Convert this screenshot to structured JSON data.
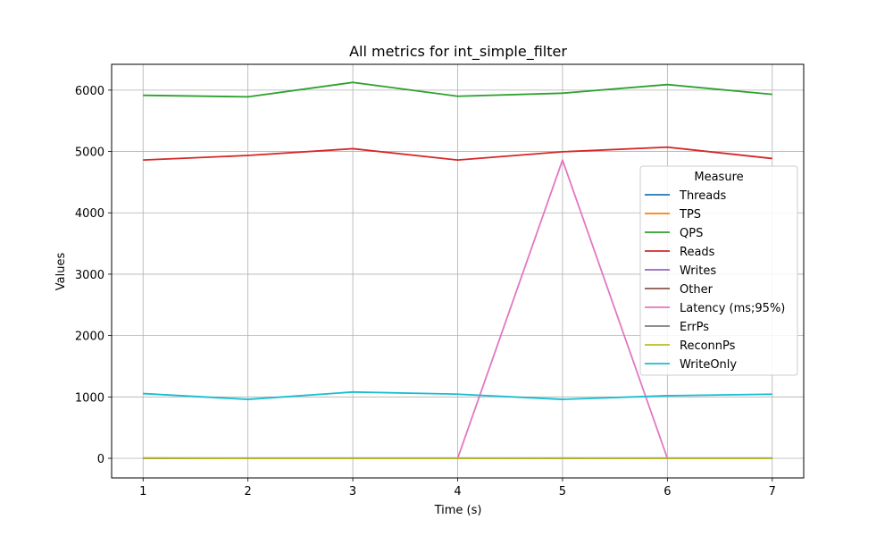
{
  "chart_data": {
    "type": "line",
    "title": "All metrics for int_simple_filter",
    "xlabel": "Time (s)",
    "ylabel": "Values",
    "x": [
      1,
      2,
      3,
      4,
      5,
      6,
      7
    ],
    "xlim": [
      0.7,
      7.3
    ],
    "ylim": [
      -320,
      6420
    ],
    "xticks": [
      1,
      2,
      3,
      4,
      5,
      6,
      7
    ],
    "yticks": [
      0,
      1000,
      2000,
      3000,
      4000,
      5000,
      6000
    ],
    "grid": true,
    "legend": {
      "title": "Measure",
      "placement": "right"
    },
    "series": [
      {
        "name": "Threads",
        "color": "#1f77b4",
        "values": [
          4,
          4,
          4,
          4,
          4,
          4,
          4
        ]
      },
      {
        "name": "TPS",
        "color": "#ff7f0e",
        "values": [
          0,
          0,
          0,
          0,
          0,
          0,
          0
        ]
      },
      {
        "name": "QPS",
        "color": "#2ca02c",
        "values": [
          5915,
          5890,
          6125,
          5900,
          5950,
          6090,
          5930
        ]
      },
      {
        "name": "Reads",
        "color": "#d62728",
        "values": [
          4860,
          4935,
          5045,
          4860,
          4995,
          5070,
          4885
        ]
      },
      {
        "name": "Writes",
        "color": "#9467bd",
        "values": [
          0,
          0,
          0,
          0,
          0,
          0,
          0
        ]
      },
      {
        "name": "Other",
        "color": "#8c564b",
        "values": [
          0,
          0,
          0,
          0,
          0,
          0,
          0
        ]
      },
      {
        "name": "Latency (ms;95%)",
        "color": "#e377c2",
        "values": [
          null,
          null,
          null,
          0,
          4860,
          0,
          null
        ]
      },
      {
        "name": "ErrPs",
        "color": "#7f7f7f",
        "values": [
          0,
          0,
          0,
          0,
          0,
          0,
          0
        ]
      },
      {
        "name": "ReconnPs",
        "color": "#bcbd22",
        "values": [
          5,
          0,
          0,
          0,
          3,
          0,
          0
        ]
      },
      {
        "name": "WriteOnly",
        "color": "#17becf",
        "values": [
          1055,
          960,
          1080,
          1045,
          960,
          1020,
          1045
        ]
      }
    ]
  }
}
